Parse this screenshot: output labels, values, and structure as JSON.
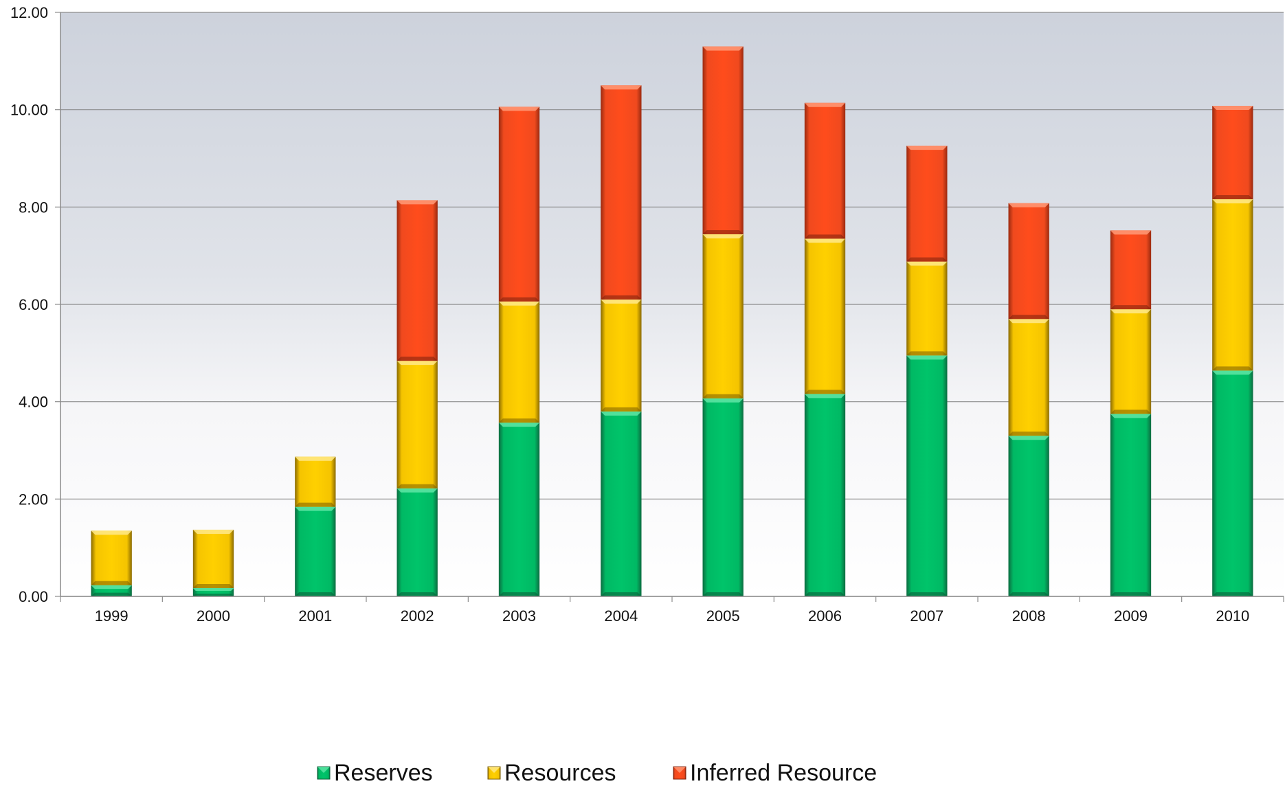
{
  "chart_data": {
    "type": "bar",
    "stacked": true,
    "categories": [
      "1999",
      "2000",
      "2001",
      "2002",
      "2003",
      "2004",
      "2005",
      "2006",
      "2007",
      "2008",
      "2009",
      "2010"
    ],
    "series": [
      {
        "name": "Reserves",
        "color": "#00c46a",
        "values": [
          0.23,
          0.17,
          1.84,
          2.22,
          3.57,
          3.8,
          4.07,
          4.16,
          4.95,
          3.3,
          3.75,
          4.64
        ]
      },
      {
        "name": "Resources",
        "color": "#ffcc00",
        "values": [
          1.12,
          1.2,
          1.03,
          2.62,
          2.49,
          2.3,
          3.37,
          3.19,
          1.93,
          2.4,
          2.15,
          3.52
        ]
      },
      {
        "name": "Inferred Resource",
        "color": "#ff4c1c",
        "values": [
          0,
          0,
          0,
          3.3,
          4.0,
          4.4,
          3.86,
          2.79,
          2.38,
          2.38,
          1.62,
          1.92
        ]
      }
    ],
    "y_ticks": [
      "0.00",
      "2.00",
      "4.00",
      "6.00",
      "8.00",
      "10.00",
      "12.00"
    ],
    "ylim": [
      0,
      12
    ],
    "title": "",
    "xlabel": "",
    "ylabel": "",
    "grid": true,
    "legend_position": "bottom"
  }
}
